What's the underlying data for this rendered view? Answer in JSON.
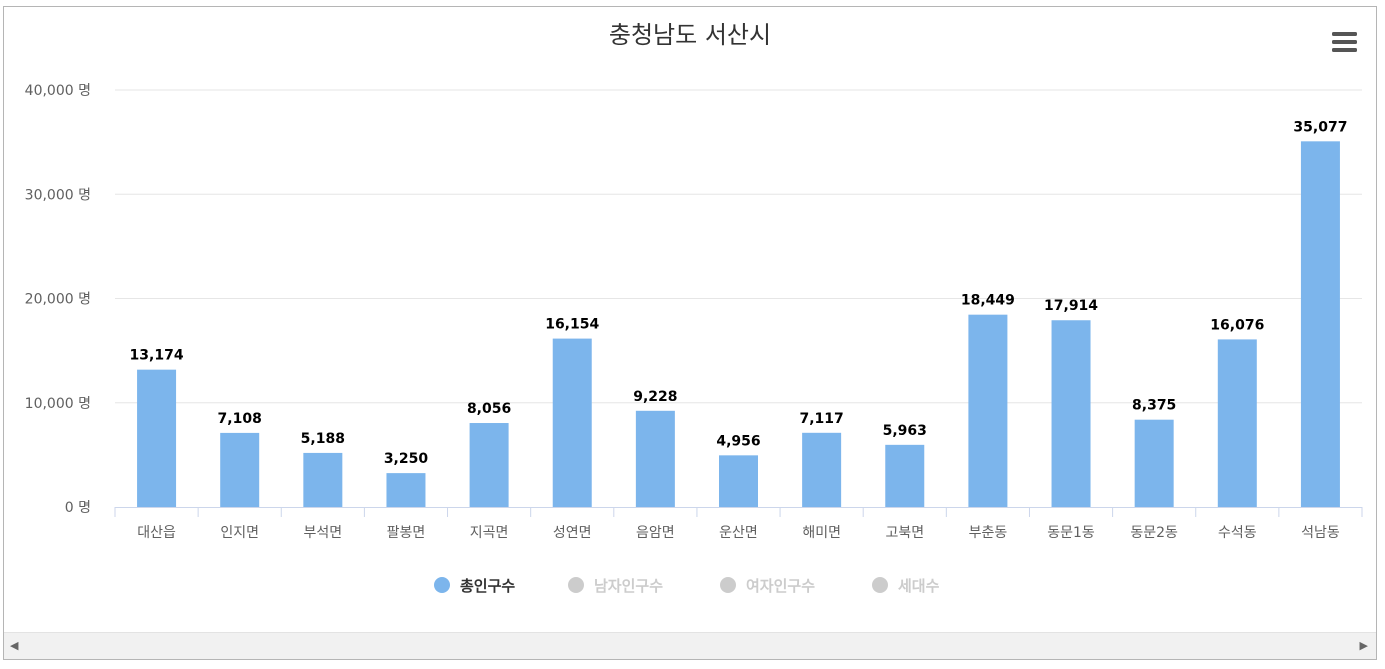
{
  "chart_data": {
    "type": "bar",
    "title": "충청남도 서산시",
    "categories": [
      "대산읍",
      "인지면",
      "부석면",
      "팔봉면",
      "지곡면",
      "성연면",
      "음암면",
      "운산면",
      "해미면",
      "고북면",
      "부춘동",
      "동문1동",
      "동문2동",
      "수석동",
      "석남동"
    ],
    "series": [
      {
        "name": "총인구수",
        "values": [
          13174,
          7108,
          5188,
          3250,
          8056,
          16154,
          9228,
          4956,
          7117,
          5963,
          18449,
          17914,
          8375,
          16076,
          35077
        ],
        "visible": true,
        "color": "#7cb5ec"
      },
      {
        "name": "남자인구수",
        "visible": false,
        "color": "#cccccc"
      },
      {
        "name": "여자인구수",
        "visible": false,
        "color": "#cccccc"
      },
      {
        "name": "세대수",
        "visible": false,
        "color": "#cccccc"
      }
    ],
    "data_labels": [
      "13,174",
      "7,108",
      "5,188",
      "3,250",
      "8,056",
      "16,154",
      "9,228",
      "4,956",
      "7,117",
      "5,963",
      "18,449",
      "17,914",
      "8,375",
      "16,076",
      "35,077"
    ],
    "ylim": [
      0,
      40000
    ],
    "yticks": [
      0,
      10000,
      20000,
      30000,
      40000
    ],
    "ytick_labels": [
      "0 명",
      "10,000 명",
      "20,000 명",
      "30,000 명",
      "40,000 명"
    ],
    "xlabel": "",
    "ylabel": "",
    "grid": true,
    "legend_position": "bottom-center"
  },
  "colors": {
    "bar": "#7cb5ec",
    "hidden_series": "#cccccc",
    "grid": "#e6e6e6",
    "axis": "#ccd6eb"
  },
  "icons": {
    "menu": "hamburger-menu-icon",
    "scroll_left": "chevron-left-icon",
    "scroll_right": "chevron-right-icon"
  },
  "scrollbar": {
    "left_arrow": "◀",
    "right_arrow": "▶"
  }
}
